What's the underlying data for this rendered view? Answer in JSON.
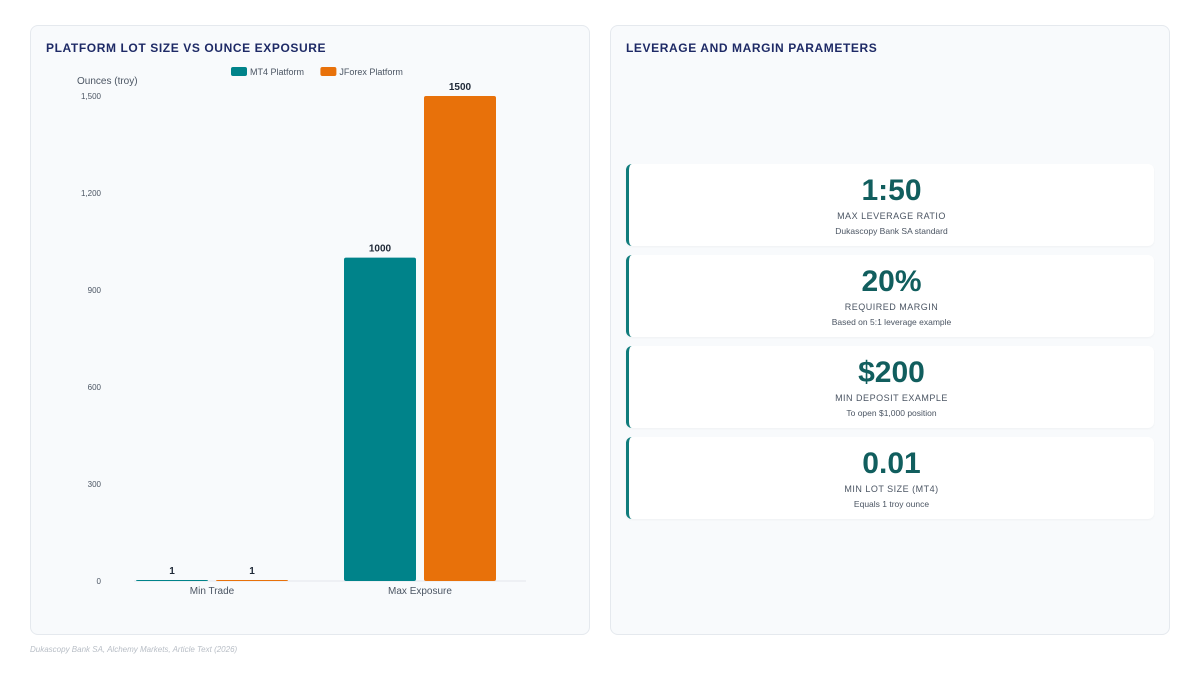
{
  "left_panel": {
    "title": "PLATFORM LOT SIZE VS OUNCE EXPOSURE"
  },
  "right_panel": {
    "title": "LEVERAGE AND MARGIN PARAMETERS"
  },
  "chart_data": {
    "type": "bar",
    "categories": [
      "Min Trade",
      "Max Exposure"
    ],
    "series": [
      {
        "name": "MT4 Platform",
        "values": [
          1,
          1000
        ],
        "color": "#00838a"
      },
      {
        "name": "JForex Platform",
        "values": [
          1,
          1500
        ],
        "color": "#e8710a"
      }
    ],
    "ylabel": "Ounces (troy)",
    "ylim": [
      0,
      1500
    ],
    "yticks": [
      0,
      300,
      600,
      900,
      1200,
      1500
    ],
    "ytick_labels": [
      "0",
      "300",
      "600",
      "900",
      "1,200",
      "1,500"
    ],
    "data_labels": true,
    "legend": "top-center",
    "grid": false
  },
  "kpis": [
    {
      "value": "1:50",
      "label": "MAX LEVERAGE RATIO",
      "sub": "Dukascopy Bank SA standard"
    },
    {
      "value": "20%",
      "label": "REQUIRED MARGIN",
      "sub": "Based on 5:1 leverage example"
    },
    {
      "value": "$200",
      "label": "MIN DEPOSIT EXAMPLE",
      "sub": "To open $1,000 position"
    },
    {
      "value": "0.01",
      "label": "MIN LOT SIZE (MT4)",
      "sub": "Equals 1 troy ounce"
    }
  ],
  "colors": {
    "accent_teal": "#0f7c7c",
    "title_navy": "#1e2a66"
  },
  "source": "Dukascopy Bank SA, Alchemy Markets, Article Text (2026)"
}
